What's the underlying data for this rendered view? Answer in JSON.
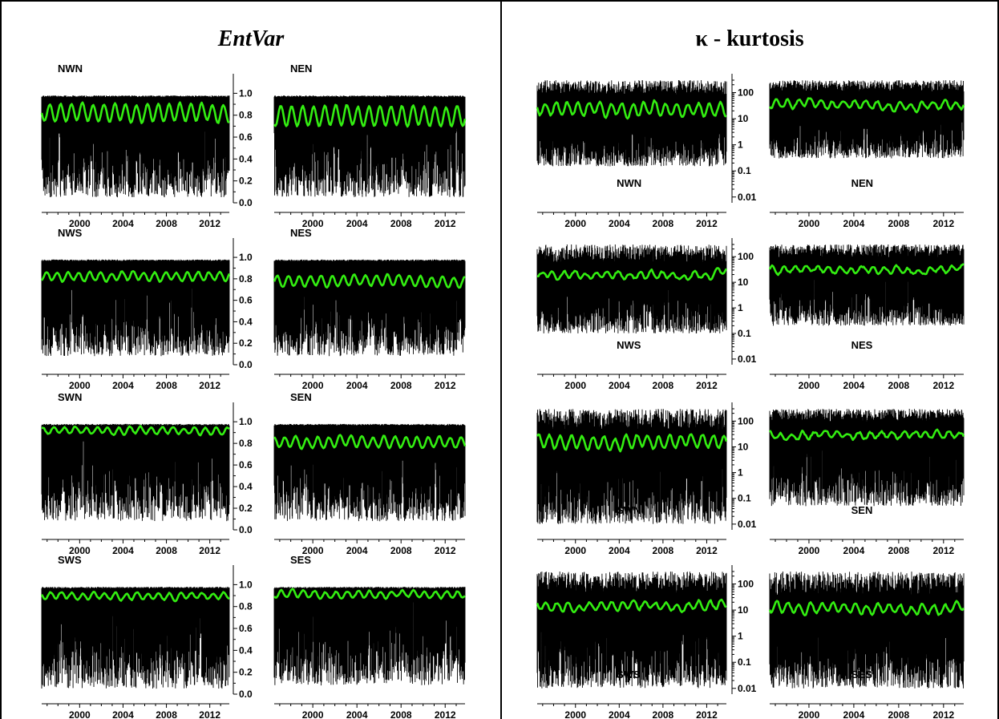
{
  "colors": {
    "data": "#000000",
    "smooth": "#33ee11",
    "frame": "#000000"
  },
  "titles": {
    "left": "EntVar",
    "right_symbol": "κ",
    "right_text": " - kurtosis"
  },
  "chart_data": [
    {
      "type": "line",
      "title": "EntVar",
      "x_range": [
        1996.5,
        2013.8
      ],
      "x_ticks": [
        "2000",
        "2004",
        "2008",
        "2012"
      ],
      "y_scale": "linear",
      "ylim": [
        0.0,
        1.12
      ],
      "y_ticks": [
        "0.0",
        "0.2",
        "0.4",
        "0.6",
        "0.8",
        "1.0"
      ],
      "series": [
        {
          "name": "NWN",
          "max": 0.98,
          "smooth_mean": 0.82,
          "smooth_amp": 0.08,
          "smooth_period": 1,
          "min_level": 0.05
        },
        {
          "name": "NEN",
          "max": 0.98,
          "smooth_mean": 0.79,
          "smooth_amp": 0.09,
          "smooth_period": 1,
          "min_level": 0.05
        },
        {
          "name": "NWS",
          "max": 0.98,
          "smooth_mean": 0.82,
          "smooth_amp": 0.04,
          "smooth_period": 1,
          "min_level": 0.08
        },
        {
          "name": "NES",
          "max": 0.98,
          "smooth_mean": 0.78,
          "smooth_amp": 0.05,
          "smooth_period": 1,
          "min_level": 0.08
        },
        {
          "name": "SWN",
          "max": 0.98,
          "smooth_mean": 0.92,
          "smooth_amp": 0.03,
          "smooth_period": 1,
          "min_level": 0.08
        },
        {
          "name": "SEN",
          "max": 0.98,
          "smooth_mean": 0.81,
          "smooth_amp": 0.05,
          "smooth_period": 1,
          "min_level": 0.08
        },
        {
          "name": "SWS",
          "max": 0.98,
          "smooth_mean": 0.9,
          "smooth_amp": 0.03,
          "smooth_period": 1,
          "min_level": 0.05
        },
        {
          "name": "SES",
          "max": 0.98,
          "smooth_mean": 0.91,
          "smooth_amp": 0.03,
          "smooth_period": 1,
          "min_level": 0.08
        }
      ]
    },
    {
      "type": "line",
      "title": "κ - kurtosis",
      "x_range": [
        1996.5,
        2013.8
      ],
      "x_ticks": [
        "2000",
        "2004",
        "2008",
        "2012"
      ],
      "y_scale": "log",
      "ylim": [
        0.006,
        300
      ],
      "y_ticks": [
        "0.01",
        "0.1",
        "1",
        "10",
        "100"
      ],
      "series": [
        {
          "name": "NWN",
          "max": 300,
          "smooth_mean": 25,
          "smooth_amp": 0.25,
          "smooth_period": 1,
          "min_level": 0.15
        },
        {
          "name": "NEN",
          "max": 300,
          "smooth_mean": 35,
          "smooth_amp": 0.15,
          "smooth_period": 1,
          "min_level": 0.3
        },
        {
          "name": "NWS",
          "max": 300,
          "smooth_mean": 20,
          "smooth_amp": 0.12,
          "smooth_period": 1,
          "min_level": 0.1
        },
        {
          "name": "NES",
          "max": 300,
          "smooth_mean": 30,
          "smooth_amp": 0.1,
          "smooth_period": 1,
          "min_level": 0.2
        },
        {
          "name": "SWN",
          "max": 300,
          "smooth_mean": 15,
          "smooth_amp": 0.25,
          "smooth_period": 1,
          "min_level": 0.01
        },
        {
          "name": "SEN",
          "max": 300,
          "smooth_mean": 30,
          "smooth_amp": 0.12,
          "smooth_period": 1,
          "min_level": 0.05
        },
        {
          "name": "SWS",
          "max": 300,
          "smooth_mean": 15,
          "smooth_amp": 0.15,
          "smooth_period": 1,
          "min_level": 0.01
        },
        {
          "name": "SES",
          "max": 300,
          "smooth_mean": 12,
          "smooth_amp": 0.18,
          "smooth_period": 1,
          "min_level": 0.01
        }
      ]
    }
  ]
}
